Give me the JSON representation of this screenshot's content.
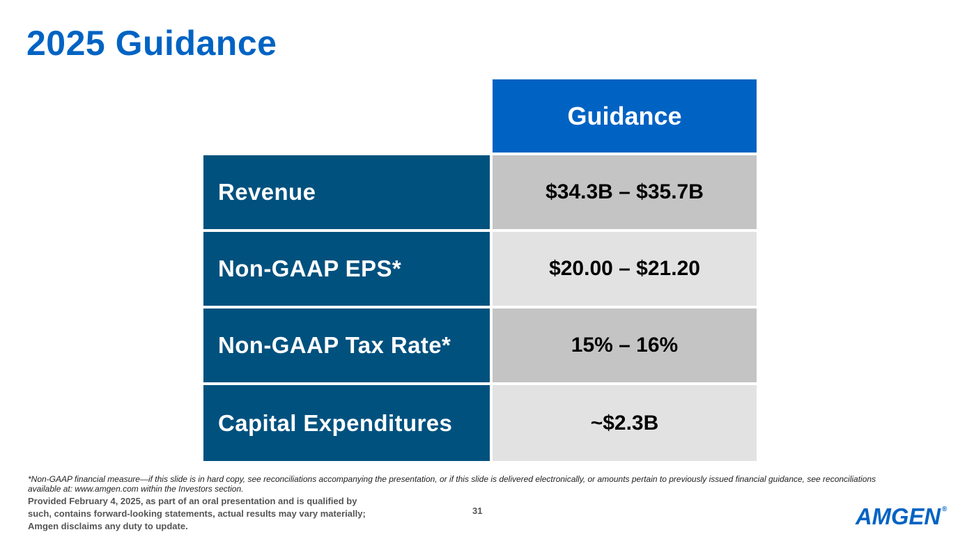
{
  "slide": {
    "title": "2025 Guidance",
    "page_number": "31"
  },
  "table": {
    "header": "Guidance",
    "rows": [
      {
        "label": "Revenue",
        "value": "$34.3B – $35.7B"
      },
      {
        "label": "Non-GAAP EPS*",
        "value": "$20.00 – $21.20"
      },
      {
        "label": "Non-GAAP Tax Rate*",
        "value": "15% – 16%"
      },
      {
        "label": "Capital Expenditures",
        "value": "~$2.3B"
      }
    ]
  },
  "footer": {
    "footnote": "*Non-GAAP financial measure—if this slide is in hard copy, see reconciliations accompanying the presentation, or if this slide is delivered electronically, or amounts pertain to previously issued financial guidance, see reconciliations available at: www.amgen.com within the Investors section.",
    "disclaimer": "Provided February 4, 2025, as part of an oral presentation and is qualified by such, contains forward-looking statements, actual results may vary materially; Amgen disclaims any duty to update."
  },
  "logo": {
    "text": "AMGEN",
    "registered_mark": "®"
  },
  "colors": {
    "title_blue": "#0063C3",
    "header_blue": "#0063C3",
    "label_navy": "#00517E",
    "value_gray_dark": "#C4C4C4",
    "value_gray_light": "#E2E2E2"
  }
}
